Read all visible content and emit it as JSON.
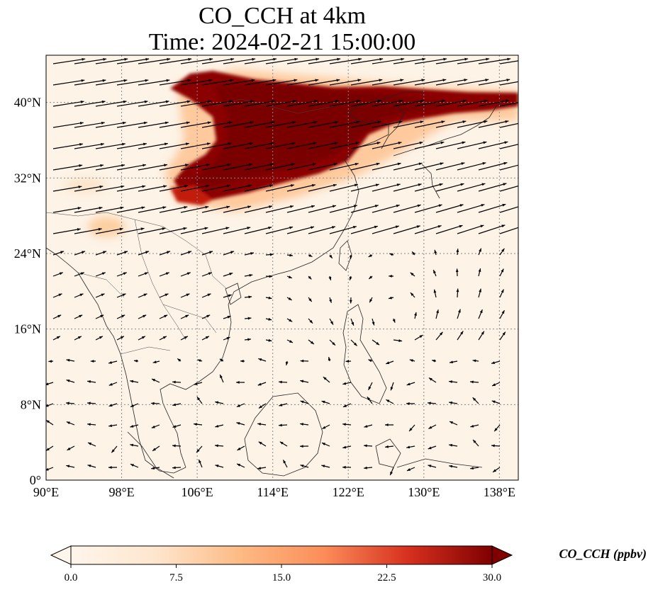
{
  "title": {
    "line1": "CO_CCH at 4km",
    "line2": "Time: 2024-02-21 15:00:00"
  },
  "map": {
    "lon_range": [
      90,
      140
    ],
    "lat_range": [
      0,
      45
    ],
    "lon_ticks": [
      "90°E",
      "98°E",
      "106°E",
      "114°E",
      "122°E",
      "130°E",
      "138°E"
    ],
    "lat_ticks": [
      "0°",
      "8°N",
      "16°N",
      "24°N",
      "32°N",
      "40°N"
    ],
    "gridlines": true,
    "wind_vectors": true,
    "plume_description": "high CO_CCH concentrations over central/eastern China (approx. 103°E–140°E, 30°N–43°N)"
  },
  "colorbar": {
    "label": "CO_CCH (ppbv)",
    "ticks": [
      "0.0",
      "7.5",
      "15.0",
      "22.5",
      "30.0"
    ],
    "range": [
      0,
      30
    ],
    "colormap": [
      "#fff5eb",
      "#fdd9b4",
      "#fda762",
      "#f3701b",
      "#c54102",
      "#7f2704"
    ],
    "extend": "both"
  },
  "colors": {
    "background": "#fdf3e6",
    "plume_dark": "#7f0000",
    "plume_mid": "#b30000",
    "coast": "#222222",
    "vector": "#000000",
    "grid": "#888888"
  }
}
